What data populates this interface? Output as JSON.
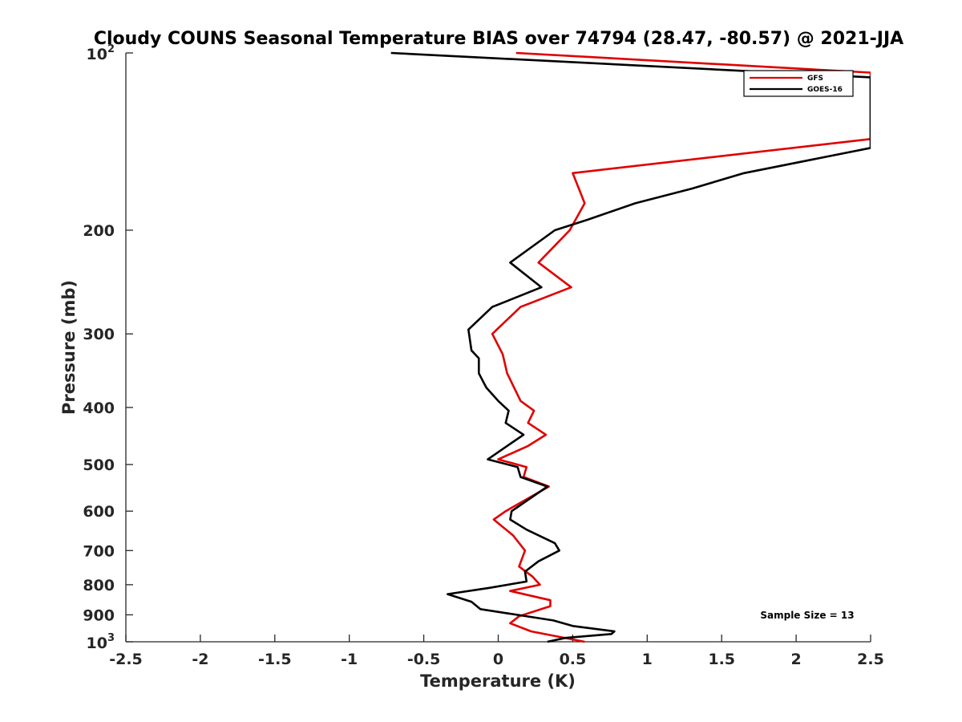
{
  "chart_data": {
    "type": "line",
    "title": "Cloudy COUNS Seasonal Temperature BIAS over 74794 (28.47, -80.57) @ 2021-JJA",
    "xlabel": "Temperature (K)",
    "ylabel": "Pressure (mb)",
    "xlim": [
      -2.5,
      2.5
    ],
    "ylim": [
      100,
      1000
    ],
    "y_scale": "log",
    "y_reversed": true,
    "grid": false,
    "legend_position": "top-right",
    "annotation": "Sample Size = 13",
    "x_ticks": [
      -2.5,
      -2,
      -1.5,
      -1,
      -0.5,
      0,
      0.5,
      1,
      1.5,
      2,
      2.5
    ],
    "x_tick_labels": [
      "-2.5",
      "-2",
      "-1.5",
      "-1",
      "-0.5",
      "0",
      "0.5",
      "1",
      "1.5",
      "2",
      "2.5"
    ],
    "y_ticks": [
      200,
      300,
      400,
      500,
      600,
      700,
      800,
      900
    ],
    "y_tick_labels": [
      "200",
      "300",
      "400",
      "500",
      "600",
      "700",
      "800",
      "900"
    ],
    "y_top_label": {
      "base": "10",
      "exp": "2"
    },
    "y_bottom_label": {
      "base": "10",
      "exp": "3"
    },
    "series": [
      {
        "name": "GFS",
        "color": "#e00000",
        "points": [
          {
            "x": 0.12,
            "y": 100
          },
          {
            "x": 2.5,
            "y": 108
          },
          {
            "x": 2.5,
            "y": 140
          },
          {
            "x": 0.5,
            "y": 160
          },
          {
            "x": 0.58,
            "y": 180
          },
          {
            "x": 0.48,
            "y": 200
          },
          {
            "x": 0.27,
            "y": 227
          },
          {
            "x": 0.49,
            "y": 250
          },
          {
            "x": 0.15,
            "y": 270
          },
          {
            "x": -0.04,
            "y": 300
          },
          {
            "x": 0.03,
            "y": 325
          },
          {
            "x": 0.06,
            "y": 350
          },
          {
            "x": 0.15,
            "y": 390
          },
          {
            "x": 0.24,
            "y": 405
          },
          {
            "x": 0.2,
            "y": 425
          },
          {
            "x": 0.32,
            "y": 445
          },
          {
            "x": 0.2,
            "y": 465
          },
          {
            "x": 0.0,
            "y": 490
          },
          {
            "x": 0.19,
            "y": 505
          },
          {
            "x": 0.17,
            "y": 525
          },
          {
            "x": 0.34,
            "y": 545
          },
          {
            "x": 0.05,
            "y": 600
          },
          {
            "x": -0.03,
            "y": 620
          },
          {
            "x": 0.1,
            "y": 660
          },
          {
            "x": 0.18,
            "y": 700
          },
          {
            "x": 0.14,
            "y": 745
          },
          {
            "x": 0.23,
            "y": 775
          },
          {
            "x": 0.28,
            "y": 800
          },
          {
            "x": 0.08,
            "y": 820
          },
          {
            "x": 0.35,
            "y": 850
          },
          {
            "x": 0.35,
            "y": 870
          },
          {
            "x": 0.14,
            "y": 905
          },
          {
            "x": 0.08,
            "y": 930
          },
          {
            "x": 0.22,
            "y": 960
          },
          {
            "x": 0.58,
            "y": 1000
          }
        ]
      },
      {
        "name": "GOES-16",
        "color": "#000000",
        "points": [
          {
            "x": -0.72,
            "y": 100
          },
          {
            "x": 2.5,
            "y": 110
          },
          {
            "x": 2.5,
            "y": 145
          },
          {
            "x": 1.65,
            "y": 160
          },
          {
            "x": 1.3,
            "y": 170
          },
          {
            "x": 0.92,
            "y": 180
          },
          {
            "x": 0.6,
            "y": 192
          },
          {
            "x": 0.38,
            "y": 200
          },
          {
            "x": 0.08,
            "y": 227
          },
          {
            "x": 0.29,
            "y": 250
          },
          {
            "x": -0.04,
            "y": 270
          },
          {
            "x": -0.2,
            "y": 295
          },
          {
            "x": -0.18,
            "y": 320
          },
          {
            "x": -0.13,
            "y": 330
          },
          {
            "x": -0.13,
            "y": 350
          },
          {
            "x": -0.08,
            "y": 370
          },
          {
            "x": 0.0,
            "y": 390
          },
          {
            "x": 0.07,
            "y": 405
          },
          {
            "x": 0.05,
            "y": 425
          },
          {
            "x": 0.17,
            "y": 445
          },
          {
            "x": 0.06,
            "y": 465
          },
          {
            "x": -0.07,
            "y": 490
          },
          {
            "x": 0.13,
            "y": 505
          },
          {
            "x": 0.15,
            "y": 525
          },
          {
            "x": 0.33,
            "y": 545
          },
          {
            "x": 0.09,
            "y": 600
          },
          {
            "x": 0.08,
            "y": 620
          },
          {
            "x": 0.19,
            "y": 645
          },
          {
            "x": 0.38,
            "y": 680
          },
          {
            "x": 0.41,
            "y": 700
          },
          {
            "x": 0.27,
            "y": 730
          },
          {
            "x": 0.18,
            "y": 760
          },
          {
            "x": 0.19,
            "y": 790
          },
          {
            "x": -0.06,
            "y": 810
          },
          {
            "x": -0.34,
            "y": 830
          },
          {
            "x": -0.18,
            "y": 855
          },
          {
            "x": -0.12,
            "y": 880
          },
          {
            "x": 0.37,
            "y": 920
          },
          {
            "x": 0.5,
            "y": 940
          },
          {
            "x": 0.78,
            "y": 960
          },
          {
            "x": 0.76,
            "y": 970
          },
          {
            "x": 0.45,
            "y": 985
          },
          {
            "x": 0.33,
            "y": 1000
          }
        ]
      }
    ]
  }
}
